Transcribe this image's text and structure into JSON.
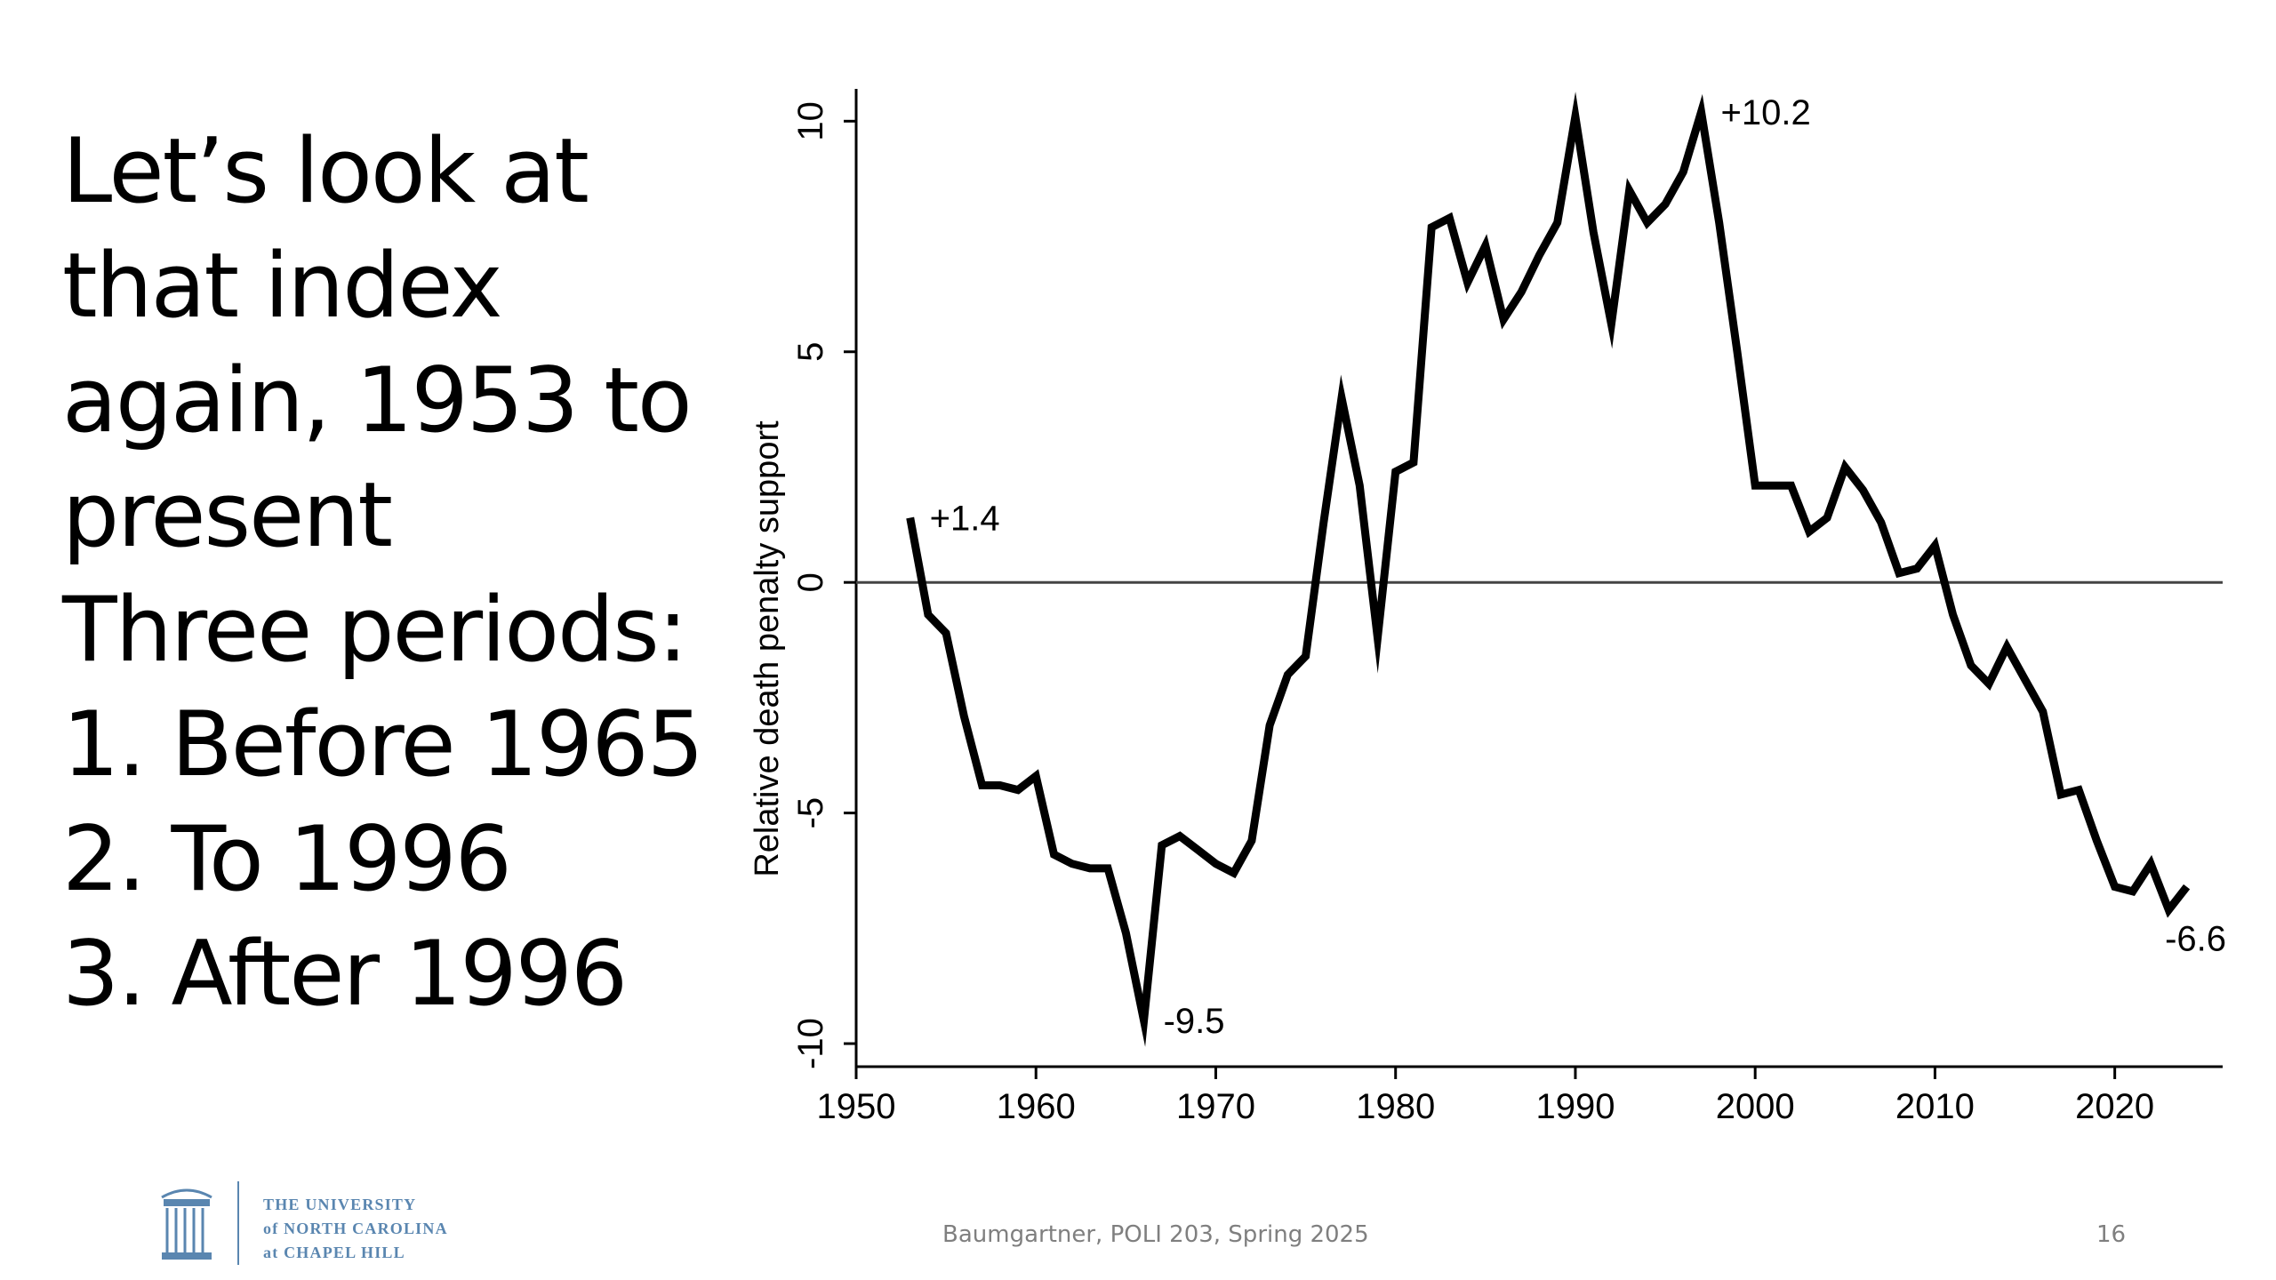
{
  "slide": {
    "title_lines": [
      "Let’s look at",
      "that index",
      "again, 1953 to",
      "present",
      "Three periods:",
      "1. Before 1965",
      "2. To 1996",
      "3. After 1996"
    ],
    "footer": "Baumgartner, POLI 203, Spring 2025",
    "page_number": "16",
    "logo": {
      "line1": "THE UNIVERSITY",
      "line2": "of NORTH CAROLINA",
      "line3": "at CHAPEL HILL",
      "color": "#5a86b0"
    }
  },
  "chart_data": {
    "type": "line",
    "title": "",
    "xlabel": "",
    "ylabel": "Relative death penalty support",
    "xlim": [
      1950,
      2026
    ],
    "ylim": [
      -10.5,
      10.7
    ],
    "xticks": [
      1950,
      1960,
      1970,
      1980,
      1990,
      2000,
      2010,
      2020
    ],
    "yticks": [
      -10,
      -5,
      0,
      5,
      10
    ],
    "ytick_labels": [
      "-10",
      "-5",
      "0",
      "5",
      "10"
    ],
    "reference_line_y": 0,
    "line_color": "#000000",
    "series": [
      {
        "name": "Relative death penalty support",
        "x": [
          1953,
          1954,
          1955,
          1956,
          1957,
          1958,
          1959,
          1960,
          1961,
          1962,
          1963,
          1964,
          1965,
          1966,
          1967,
          1968,
          1969,
          1970,
          1971,
          1972,
          1973,
          1974,
          1975,
          1976,
          1977,
          1978,
          1979,
          1980,
          1981,
          1982,
          1983,
          1984,
          1985,
          1986,
          1987,
          1988,
          1989,
          1990,
          1991,
          1992,
          1993,
          1994,
          1995,
          1996,
          1997,
          1998,
          1999,
          2000,
          2001,
          2002,
          2003,
          2004,
          2005,
          2006,
          2007,
          2008,
          2009,
          2010,
          2011,
          2012,
          2013,
          2014,
          2015,
          2016,
          2017,
          2018,
          2019,
          2020,
          2021,
          2022,
          2023,
          2024
        ],
        "y": [
          1.4,
          -0.7,
          -1.1,
          -2.9,
          -4.4,
          -4.4,
          -4.5,
          -4.2,
          -5.9,
          -6.1,
          -6.2,
          -6.2,
          -7.6,
          -9.5,
          -5.7,
          -5.5,
          -5.8,
          -6.1,
          -6.3,
          -5.6,
          -3.1,
          -2.0,
          -1.6,
          1.3,
          4.0,
          2.1,
          -1.2,
          2.4,
          2.6,
          7.7,
          7.9,
          6.5,
          7.3,
          5.7,
          6.3,
          7.1,
          7.8,
          10.1,
          7.6,
          5.6,
          8.5,
          7.8,
          8.2,
          8.9,
          10.2,
          7.8,
          5.0,
          2.1,
          2.1,
          2.1,
          1.1,
          1.4,
          2.5,
          2.0,
          1.3,
          0.2,
          0.3,
          0.8,
          -0.7,
          -1.8,
          -2.2,
          -1.4,
          -2.1,
          -2.8,
          -4.6,
          -4.5,
          -5.6,
          -6.6,
          -6.7,
          -6.1,
          -7.1,
          -6.6
        ]
      }
    ],
    "annotations": [
      {
        "x": 1953,
        "y": 1.4,
        "text": "+1.4",
        "anchor": "right-of-point"
      },
      {
        "x": 1966,
        "y": -9.5,
        "text": "-9.5",
        "anchor": "right-of-point"
      },
      {
        "x": 1997,
        "y": 10.2,
        "text": "+10.2",
        "anchor": "right-of-point"
      },
      {
        "x": 2024,
        "y": -6.6,
        "text": "-6.6",
        "anchor": "below-point"
      }
    ]
  }
}
